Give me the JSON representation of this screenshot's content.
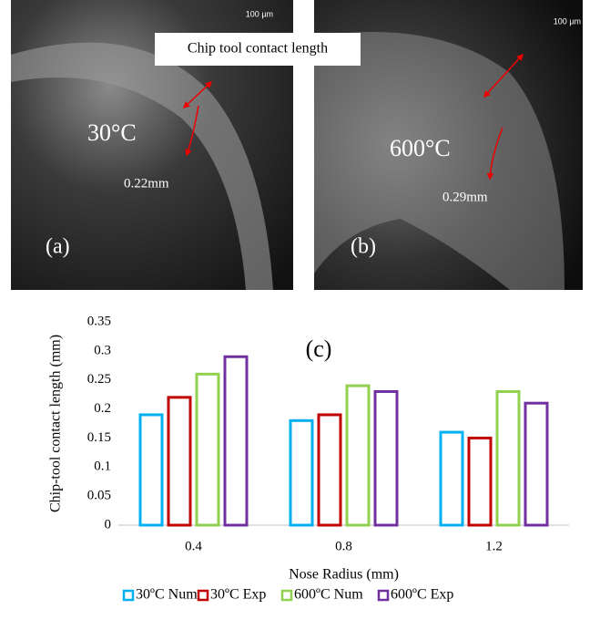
{
  "panels": [
    {
      "scale": "100 µm",
      "temperature": "30°C",
      "length": "0.22mm",
      "label": "(a)",
      "caption": "Chip tool contact length"
    },
    {
      "scale": "100 µm",
      "temperature": "600°C",
      "length": "0.29mm",
      "label": "(b)"
    }
  ],
  "chart_data": {
    "type": "bar",
    "annotation": "(c)",
    "y_label": "Chip-tool contact length (mm)",
    "x_label": "Nose Radius (mm)",
    "categories": [
      "0.4",
      "0.8",
      "1.2"
    ],
    "series": [
      {
        "name": "30ºC Num",
        "color": "#00b0f0",
        "values": [
          0.19,
          0.18,
          0.16
        ]
      },
      {
        "name": "30ºC Exp",
        "color": "#c00000",
        "values": [
          0.22,
          0.19,
          0.15
        ]
      },
      {
        "name": "600ºC Num",
        "color": "#92d050",
        "values": [
          0.26,
          0.24,
          0.23
        ]
      },
      {
        "name": "600ºC Exp",
        "color": "#7030a0",
        "values": [
          0.29,
          0.23,
          0.21
        ]
      }
    ],
    "ylim": [
      0,
      0.35
    ],
    "yticks": [
      0,
      0.05,
      0.1,
      0.15,
      0.2,
      0.25,
      0.3,
      0.35
    ],
    "grid": false,
    "legend": "bottom"
  }
}
